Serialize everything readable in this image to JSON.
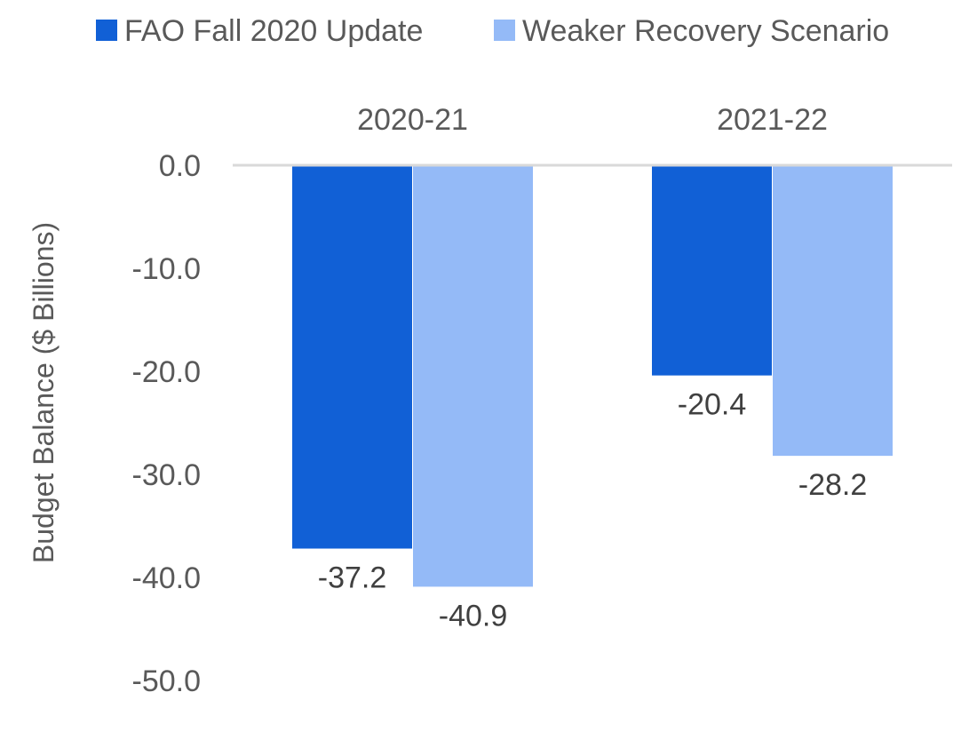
{
  "chart_data": {
    "type": "bar",
    "categories": [
      "2020-21",
      "2021-22"
    ],
    "series": [
      {
        "name": "FAO Fall 2020 Update",
        "color": "#1160D6",
        "values": [
          -37.2,
          -20.4
        ]
      },
      {
        "name": "Weaker Recovery Scenario",
        "color": "#94BAF7",
        "values": [
          -40.9,
          -28.2
        ]
      }
    ],
    "data_labels": [
      [
        "-37.2",
        "-20.4"
      ],
      [
        "-40.9",
        "-28.2"
      ]
    ],
    "title": "",
    "xlabel": "",
    "ylabel": "Budget Balance ($ Billions)",
    "ylim": [
      -50,
      0
    ],
    "yticks": [
      0,
      -10,
      -20,
      -30,
      -40,
      -50
    ],
    "ytick_labels": [
      "0.0",
      "-10.0",
      "-20.0",
      "-30.0",
      "-40.0",
      "-50.0"
    ],
    "category_axis_position": "top",
    "legend": "top",
    "grid": false
  }
}
